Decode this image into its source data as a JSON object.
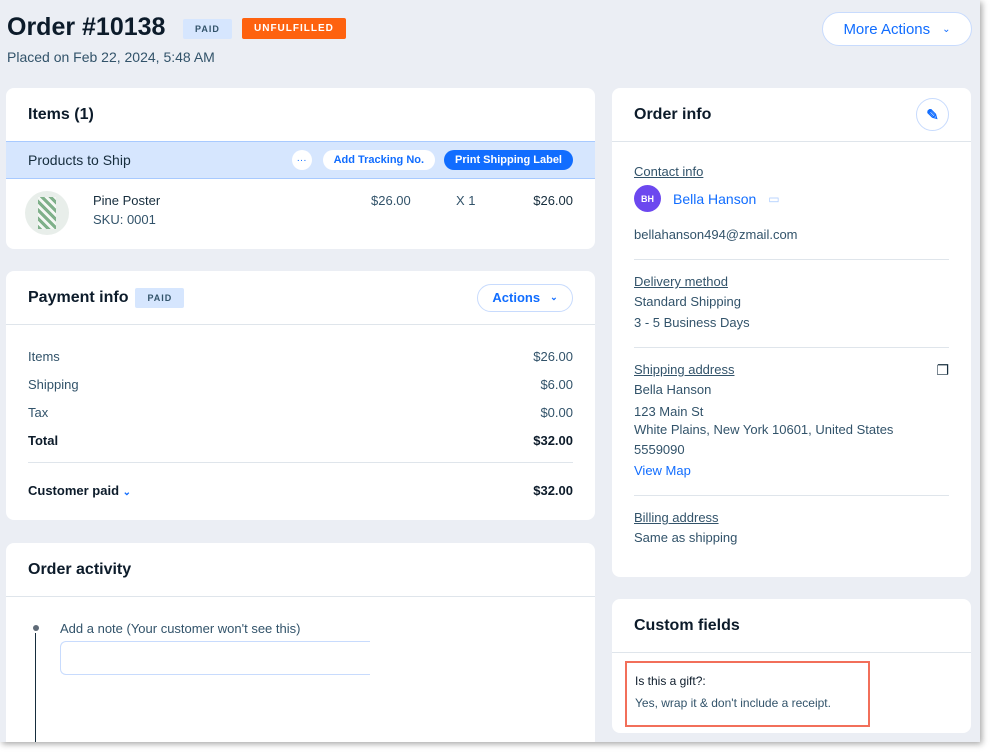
{
  "header": {
    "title": "Order #10138",
    "paid_badge": "PAID",
    "fulfill_badge": "UNFULFILLED",
    "placed": "Placed on Feb 22, 2024, 5:48 AM",
    "more_actions": "More Actions"
  },
  "items": {
    "title": "Items (1)",
    "band_title": "Products to Ship",
    "more": "···",
    "add_tracking": "Add Tracking No.",
    "print_label": "Print Shipping Label",
    "products": [
      {
        "name": "Pine Poster",
        "sku": "SKU: 0001",
        "price": "$26.00",
        "qty": "X 1",
        "total": "$26.00"
      }
    ]
  },
  "payment": {
    "title": "Payment info",
    "badge": "PAID",
    "actions": "Actions",
    "rows": [
      {
        "label": "Items",
        "value": "$26.00"
      },
      {
        "label": "Shipping",
        "value": "$6.00"
      },
      {
        "label": "Tax",
        "value": "$0.00"
      }
    ],
    "total_label": "Total",
    "total_value": "$32.00",
    "paid_label": "Customer paid",
    "paid_value": "$32.00"
  },
  "activity": {
    "title": "Order activity",
    "note_label": "Add a note (Your customer won't see this)",
    "note_placeholder": ""
  },
  "order_info": {
    "title": "Order info",
    "contact_label": "Contact info",
    "avatar": "BH",
    "name": "Bella Hanson",
    "email": "bellahanson494@zmail.com",
    "delivery_label": "Delivery method",
    "delivery": [
      "Standard Shipping",
      "3 - 5 Business Days"
    ],
    "shipping_label": "Shipping address",
    "shipping": [
      "Bella Hanson",
      "123 Main St",
      "White Plains, New York 10601, United States",
      "5559090"
    ],
    "view_map": "View Map",
    "billing_label": "Billing address",
    "billing": "Same as shipping"
  },
  "custom": {
    "title": "Custom fields",
    "question": "Is this a gift?:",
    "answer": "Yes, wrap it & don't include a receipt."
  },
  "colors": {
    "accent": "#116dff",
    "unfulfilled": "#fe620f",
    "avatar": "#6c48ef",
    "highlight": "#f26f5a"
  }
}
